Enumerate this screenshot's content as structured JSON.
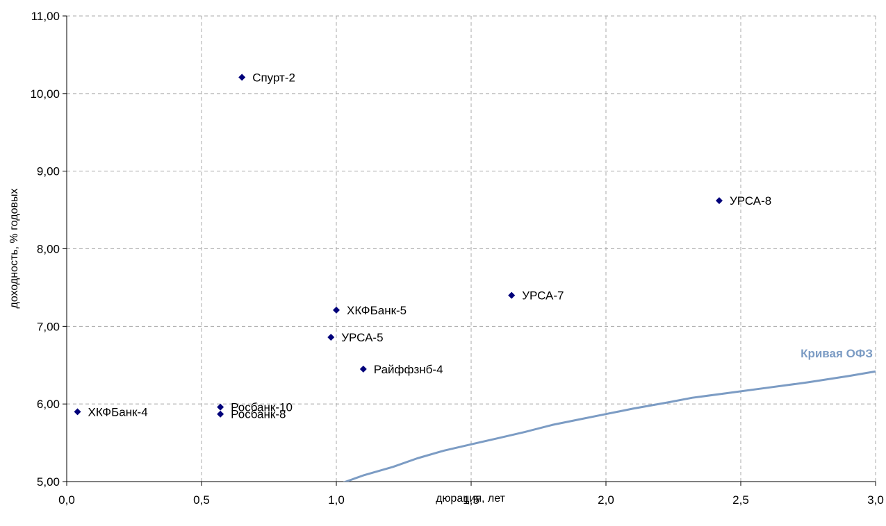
{
  "chart_data": {
    "type": "scatter",
    "title": "",
    "xlabel": "дюрация, лет",
    "ylabel": "доходность, % годовых",
    "xlim": [
      0.0,
      3.0
    ],
    "ylim": [
      5.0,
      11.0
    ],
    "x_ticks": [
      "0,0",
      "0,5",
      "1,0",
      "1,5",
      "2,0",
      "2,5",
      "3,0"
    ],
    "y_ticks": [
      "5,00",
      "6,00",
      "7,00",
      "8,00",
      "9,00",
      "10,00",
      "11,00"
    ],
    "grid": true,
    "legend": "none",
    "series": [
      {
        "type": "scatter",
        "marker": "diamond",
        "color": "#00007a",
        "points": [
          {
            "x": 0.04,
            "y": 5.9,
            "label": "ХКФБанк-4"
          },
          {
            "x": 0.65,
            "y": 10.21,
            "label": "Спурт-2"
          },
          {
            "x": 0.57,
            "y": 5.96,
            "label": "Росбанк-10"
          },
          {
            "x": 0.57,
            "y": 5.87,
            "label": "Росбанк-8"
          },
          {
            "x": 1.0,
            "y": 7.21,
            "label": "ХКФБанк-5"
          },
          {
            "x": 0.98,
            "y": 6.86,
            "label": "УРСА-5"
          },
          {
            "x": 1.1,
            "y": 6.45,
            "label": "Райффзнб-4"
          },
          {
            "x": 1.65,
            "y": 7.4,
            "label": "УРСА-7"
          },
          {
            "x": 2.42,
            "y": 8.62,
            "label": "УРСА-8"
          }
        ]
      },
      {
        "name": "Кривая ОФЗ",
        "type": "line",
        "color": "#7c9cc4",
        "points": [
          {
            "x": 1.02,
            "y": 4.98
          },
          {
            "x": 1.1,
            "y": 5.08
          },
          {
            "x": 1.21,
            "y": 5.19
          },
          {
            "x": 1.3,
            "y": 5.3
          },
          {
            "x": 1.4,
            "y": 5.4
          },
          {
            "x": 1.5,
            "y": 5.48
          },
          {
            "x": 1.6,
            "y": 5.56
          },
          {
            "x": 1.7,
            "y": 5.64
          },
          {
            "x": 1.8,
            "y": 5.73
          },
          {
            "x": 1.9,
            "y": 5.8
          },
          {
            "x": 2.0,
            "y": 5.87
          },
          {
            "x": 2.1,
            "y": 5.94
          },
          {
            "x": 2.23,
            "y": 6.02
          },
          {
            "x": 2.32,
            "y": 6.08
          },
          {
            "x": 2.45,
            "y": 6.14
          },
          {
            "x": 2.6,
            "y": 6.21
          },
          {
            "x": 2.75,
            "y": 6.28
          },
          {
            "x": 2.9,
            "y": 6.36
          },
          {
            "x": 3.0,
            "y": 6.42
          }
        ]
      }
    ]
  }
}
